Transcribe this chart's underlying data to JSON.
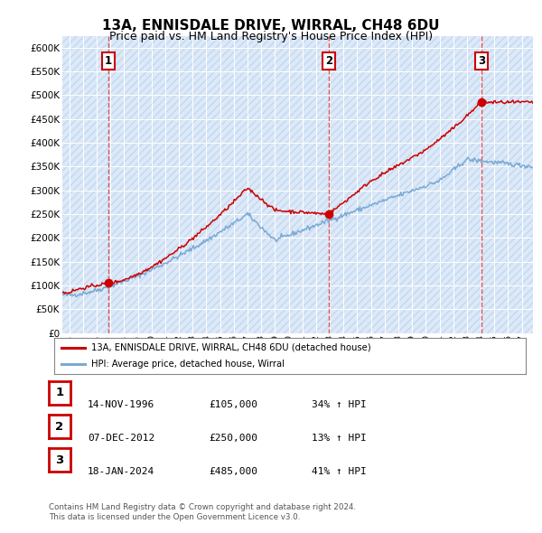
{
  "title": "13A, ENNISDALE DRIVE, WIRRAL, CH48 6DU",
  "subtitle": "Price paid vs. HM Land Registry's House Price Index (HPI)",
  "ytick_values": [
    0,
    50000,
    100000,
    150000,
    200000,
    250000,
    300000,
    350000,
    400000,
    450000,
    500000,
    550000,
    600000
  ],
  "ylim": [
    0,
    625000
  ],
  "xlim_start": 1993.5,
  "xlim_end": 2027.8,
  "background_color": "#ffffff",
  "plot_bg_color": "#dce9f8",
  "grid_color": "#ffffff",
  "hatch_color": "#c5d8ee",
  "sale_color": "#cc0000",
  "hpi_color": "#7aaad4",
  "dashed_line_color": "#dd4444",
  "legend_sale_label": "13A, ENNISDALE DRIVE, WIRRAL, CH48 6DU (detached house)",
  "legend_hpi_label": "HPI: Average price, detached house, Wirral",
  "transactions": [
    {
      "num": 1,
      "date": 1996.87,
      "price": 105000
    },
    {
      "num": 2,
      "date": 2012.92,
      "price": 250000
    },
    {
      "num": 3,
      "date": 2024.05,
      "price": 485000
    }
  ],
  "footnote1": "Contains HM Land Registry data © Crown copyright and database right 2024.",
  "footnote2": "This data is licensed under the Open Government Licence v3.0.",
  "table_rows": [
    [
      "1",
      "14-NOV-1996",
      "£105,000",
      "34% ↑ HPI"
    ],
    [
      "2",
      "07-DEC-2012",
      "£250,000",
      "13% ↑ HPI"
    ],
    [
      "3",
      "18-JAN-2024",
      "£485,000",
      "41% ↑ HPI"
    ]
  ]
}
